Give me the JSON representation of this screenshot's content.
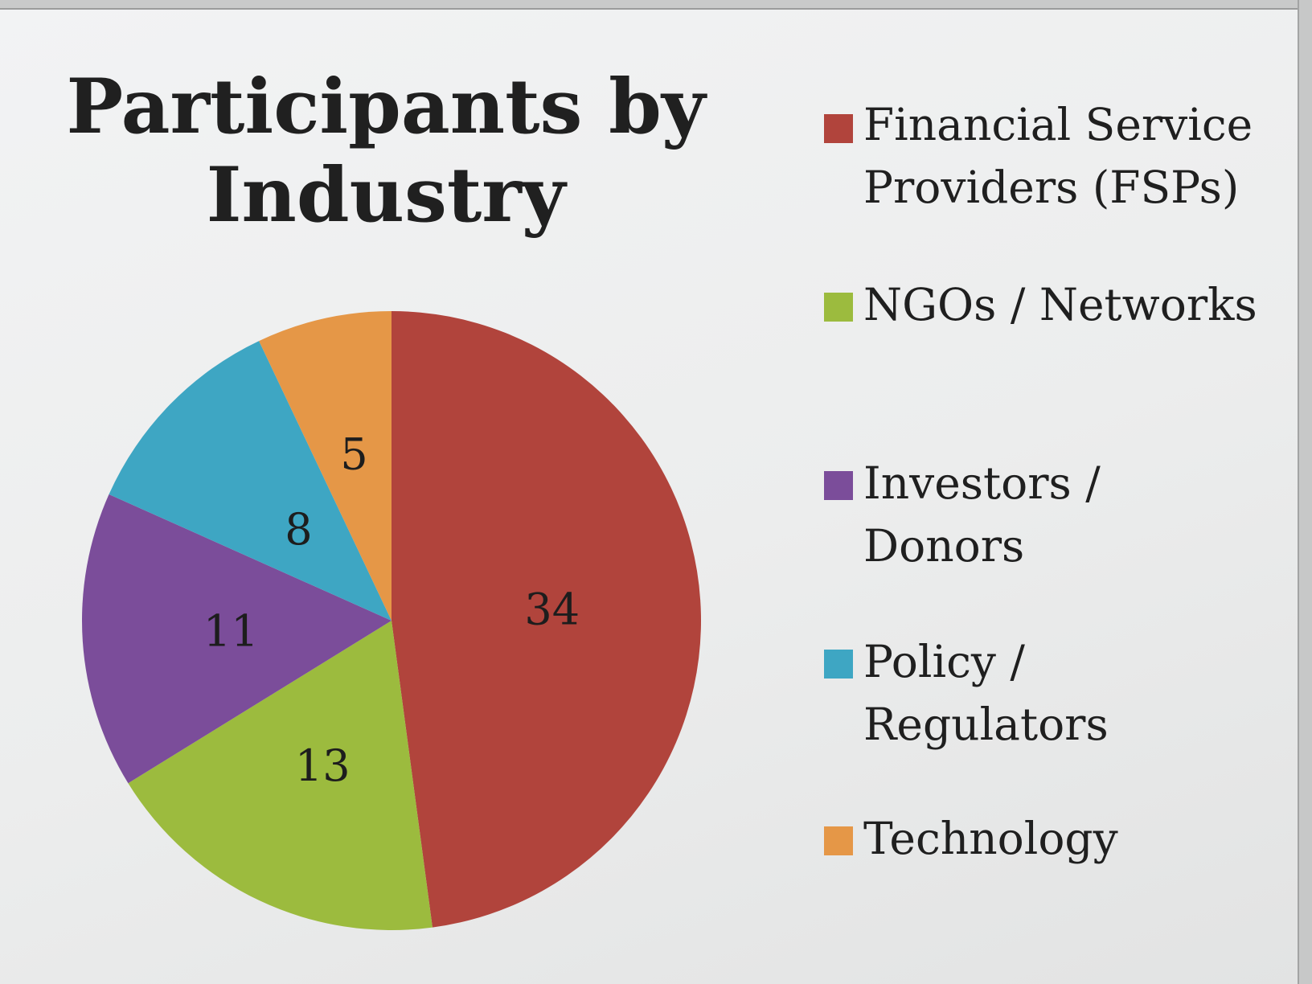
{
  "chart_data": {
    "type": "pie",
    "title": "Participants by\nIndustry",
    "categories": [
      "Financial Service Providers (FSPs)",
      "NGOs / Networks",
      "Investors / Donors",
      "Policy / Regulators",
      "Technology"
    ],
    "values": [
      34,
      13,
      11,
      8,
      5
    ],
    "colors": [
      "#b1443c",
      "#9cbb3e",
      "#7b4d9a",
      "#3ea6c3",
      "#e59747"
    ],
    "legend_position": "right"
  },
  "legend": [
    {
      "line1": "Financial Service",
      "line2": "Providers (FSPs)",
      "color": "#b1443c"
    },
    {
      "line1": "NGOs / Networks",
      "line2": "",
      "color": "#9cbb3e"
    },
    {
      "line1": "Investors /",
      "line2": "Donors",
      "color": "#7b4d9a"
    },
    {
      "line1": "Policy /",
      "line2": "Regulators",
      "color": "#3ea6c3"
    },
    {
      "line1": "Technology",
      "line2": "",
      "color": "#e59747"
    }
  ]
}
